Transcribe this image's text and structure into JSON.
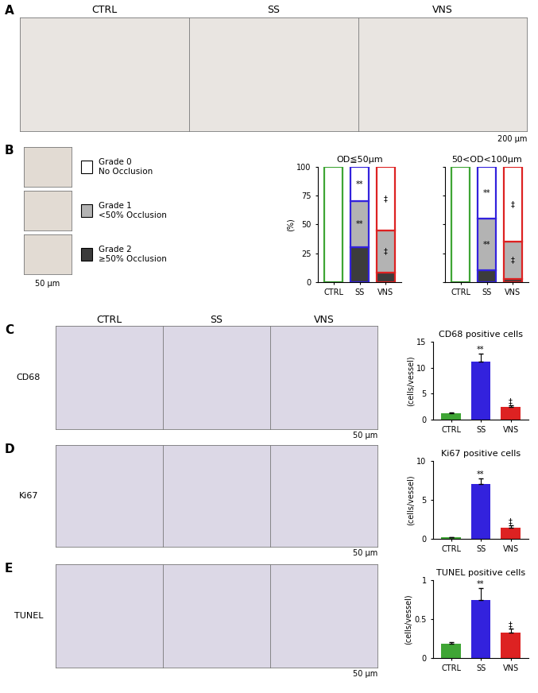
{
  "images": {
    "A": {
      "label": "A",
      "columns": [
        "CTRL",
        "SS",
        "VNS"
      ],
      "scale_bar": "200 µm"
    },
    "B": {
      "label": "B",
      "scale_bar": "50 µm"
    },
    "C": {
      "label": "C",
      "columns": [
        "CTRL",
        "SS",
        "VNS"
      ],
      "row": "CD68",
      "scale_bar": "50 µm"
    },
    "D": {
      "label": "D",
      "row": "Ki67",
      "scale_bar": "50 µm"
    },
    "E": {
      "label": "E",
      "row": "TUNEL",
      "scale_bar": "50 µm"
    }
  },
  "chart_data": [
    {
      "type": "bar",
      "stacked": true,
      "title": "OD≦50µm",
      "ylabel": "(%)",
      "categories": [
        "CTRL",
        "SS",
        "VNS"
      ],
      "colors": [
        "#3fa535",
        "#3322dd",
        "#dd2222"
      ],
      "ylim": [
        0,
        100
      ],
      "yticks": [
        0,
        25,
        50,
        75,
        100
      ],
      "series": [
        {
          "name": "Grade 0\nNo Occlusion",
          "color": "#ffffff",
          "values": [
            100,
            30,
            55
          ],
          "marks": [
            null,
            "**",
            "‡"
          ]
        },
        {
          "name": "Grade 1\n<50% Occlusion",
          "color": "#b3b3b3",
          "values": [
            0,
            40,
            37
          ],
          "marks": [
            null,
            "**",
            "‡"
          ]
        },
        {
          "name": "Grade 2\n≥50% Occlusion",
          "color": "#3c3c3c",
          "values": [
            0,
            30,
            8
          ],
          "marks": [
            null,
            null,
            null
          ]
        }
      ]
    },
    {
      "type": "bar",
      "stacked": true,
      "title": "50<OD<100µm",
      "tick_labels": "x",
      "categories": [
        "CTRL",
        "SS",
        "VNS"
      ],
      "colors": [
        "#3fa535",
        "#3322dd",
        "#dd2222"
      ],
      "ylim": [
        0,
        100
      ],
      "yticks": [
        0,
        25,
        50,
        75,
        100
      ],
      "series": [
        {
          "color": "#ffffff",
          "values": [
            100,
            45,
            65
          ],
          "marks": [
            null,
            "**",
            "‡"
          ]
        },
        {
          "color": "#b3b3b3",
          "values": [
            0,
            45,
            32
          ],
          "marks": [
            null,
            "**",
            "‡"
          ]
        },
        {
          "color": "#3c3c3c",
          "values": [
            0,
            10,
            3
          ],
          "marks": [
            null,
            null,
            null
          ]
        }
      ]
    },
    {
      "type": "bar",
      "title": "CD68 positive cells",
      "ylabel": "(cells/vessel)",
      "categories": [
        "CTRL",
        "SS",
        "VNS"
      ],
      "colors": [
        "#3fa535",
        "#3322dd",
        "#dd2222"
      ],
      "values": [
        1.3,
        11.2,
        2.4
      ],
      "errors": [
        0.1,
        1.5,
        0.3
      ],
      "marks": [
        null,
        "**",
        "‡"
      ],
      "ylim": [
        0,
        15
      ],
      "yticks": [
        0,
        5,
        10,
        15
      ]
    },
    {
      "type": "bar",
      "title": "Ki67 positive cells",
      "ylabel": "(cells/vessel)",
      "categories": [
        "CTRL",
        "SS",
        "VNS"
      ],
      "colors": [
        "#3fa535",
        "#3322dd",
        "#dd2222"
      ],
      "values": [
        0.2,
        7.0,
        1.4
      ],
      "errors": [
        0.05,
        0.8,
        0.3
      ],
      "marks": [
        null,
        "**",
        "‡"
      ],
      "ylim": [
        0,
        10
      ],
      "yticks": [
        0,
        5,
        10
      ]
    },
    {
      "type": "bar",
      "title": "TUNEL positive cells",
      "ylabel": "(cells/vessel)",
      "categories": [
        "CTRL",
        "SS",
        "VNS"
      ],
      "colors": [
        "#3fa535",
        "#3322dd",
        "#dd2222"
      ],
      "values": [
        0.18,
        0.75,
        0.33
      ],
      "errors": [
        0.02,
        0.15,
        0.05
      ],
      "marks": [
        null,
        "**",
        "‡"
      ],
      "ylim": [
        0,
        1
      ],
      "yticks": [
        0,
        0.5,
        1
      ]
    }
  ]
}
